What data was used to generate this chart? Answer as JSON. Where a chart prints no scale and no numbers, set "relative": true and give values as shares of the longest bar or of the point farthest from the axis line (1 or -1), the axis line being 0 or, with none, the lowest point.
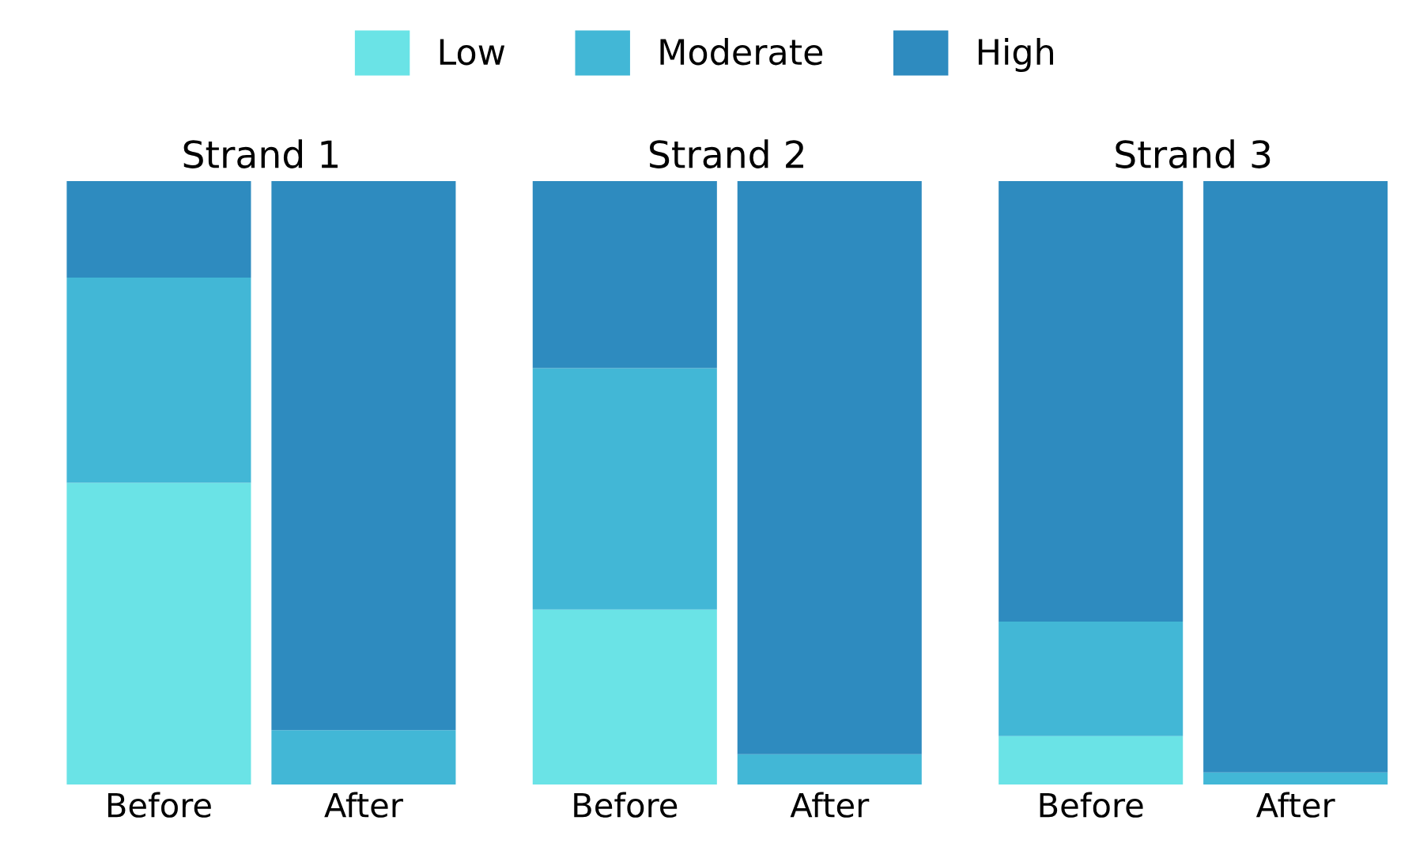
{
  "chart_data": [
    {
      "type": "bar",
      "title": "Strand 1",
      "categories": [
        "Before",
        "After"
      ],
      "stacked": true,
      "relative": true,
      "legend": "top",
      "series": [
        {
          "name": "Low",
          "color": "#6ae3e6",
          "values": [
            0.5,
            0
          ]
        },
        {
          "name": "Moderate",
          "color": "#42b7d6",
          "values": [
            0.34,
            0.09
          ]
        },
        {
          "name": "High",
          "color": "#2e8bbf",
          "values": [
            0.16,
            0.91
          ]
        }
      ]
    },
    {
      "type": "bar",
      "title": "Strand 2",
      "categories": [
        "Before",
        "After"
      ],
      "stacked": true,
      "relative": true,
      "series": [
        {
          "color": "#6ae3e6",
          "values": [
            0.29,
            0
          ]
        },
        {
          "color": "#42b7d6",
          "values": [
            0.4,
            0.05
          ]
        },
        {
          "color": "#2e8bbf",
          "values": [
            0.31,
            0.95
          ]
        }
      ]
    },
    {
      "type": "bar",
      "title": "Strand 3",
      "categories": [
        "Before",
        "After"
      ],
      "stacked": true,
      "relative": true,
      "series": [
        {
          "color": "#6ae3e6",
          "values": [
            0.08,
            0
          ]
        },
        {
          "color": "#42b7d6",
          "values": [
            0.19,
            0.02
          ]
        },
        {
          "color": "#2e8bbf",
          "values": [
            0.73,
            0.98
          ]
        }
      ]
    }
  ]
}
